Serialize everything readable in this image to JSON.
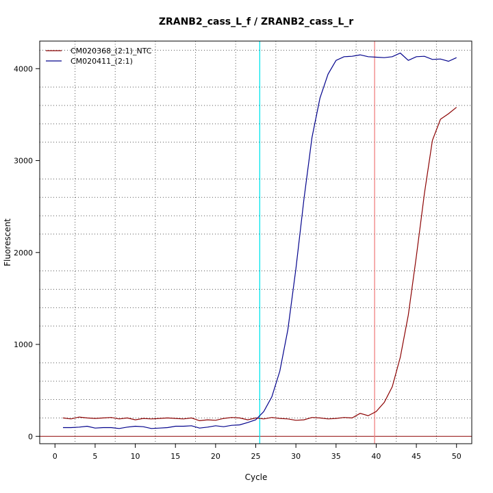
{
  "chart_data": {
    "type": "line",
    "title": "ZRANB2_cass_L_f / ZRANB2_cass_L_r",
    "xlabel": "Cycle",
    "ylabel": "Fluorescent",
    "xlim": [
      -1.9,
      51.9
    ],
    "ylim": [
      -80,
      4300
    ],
    "x_ticks": [
      0,
      5,
      10,
      15,
      20,
      25,
      30,
      35,
      40,
      45,
      50
    ],
    "y_ticks": [
      0,
      1000,
      2000,
      3000,
      4000
    ],
    "grid": "dotted",
    "legend_position": "top-left",
    "threshold_line": {
      "y": 0,
      "color": "#8b0000"
    },
    "vertical_lines": [
      {
        "x": 25.5,
        "color": "#00e5ee"
      },
      {
        "x": 39.8,
        "color": "#f08080"
      }
    ],
    "x": [
      1,
      2,
      3,
      4,
      5,
      6,
      7,
      8,
      9,
      10,
      11,
      12,
      13,
      14,
      15,
      16,
      17,
      18,
      19,
      20,
      21,
      22,
      23,
      24,
      25,
      26,
      27,
      28,
      29,
      30,
      31,
      32,
      33,
      34,
      35,
      36,
      37,
      38,
      39,
      40,
      41,
      42,
      43,
      44,
      45,
      46,
      47,
      48,
      49,
      50
    ],
    "series": [
      {
        "name": "CM020368_(2:1)_NTC",
        "color": "#8b0000",
        "values": [
          200,
          190,
          210,
          200,
          195,
          200,
          205,
          190,
          200,
          180,
          195,
          190,
          195,
          200,
          195,
          190,
          200,
          170,
          180,
          175,
          195,
          205,
          200,
          180,
          200,
          190,
          205,
          195,
          190,
          175,
          180,
          205,
          200,
          190,
          195,
          205,
          200,
          250,
          225,
          270,
          370,
          540,
          860,
          1320,
          1960,
          2640,
          3220,
          3450,
          3510,
          3580
        ]
      },
      {
        "name": "CM020411_(2:1)",
        "color": "#00008b",
        "values": [
          95,
          95,
          100,
          110,
          90,
          95,
          95,
          85,
          100,
          110,
          105,
          85,
          90,
          95,
          110,
          110,
          115,
          90,
          100,
          115,
          105,
          120,
          125,
          150,
          180,
          270,
          430,
          710,
          1160,
          1820,
          2580,
          3250,
          3680,
          3940,
          4090,
          4130,
          4135,
          4150,
          4130,
          4125,
          4120,
          4130,
          4170,
          4090,
          4130,
          4135,
          4100,
          4105,
          4080,
          4120
        ]
      }
    ]
  }
}
